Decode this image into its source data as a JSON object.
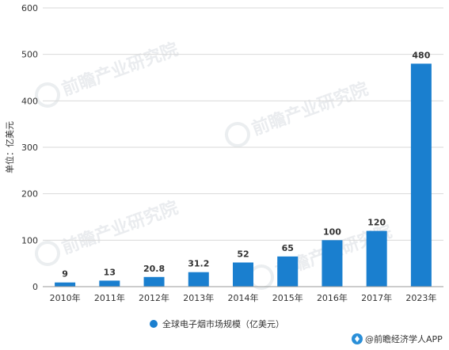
{
  "chart_data": {
    "type": "bar",
    "categories": [
      "2010年",
      "2011年",
      "2012年",
      "2013年",
      "2014年",
      "2015年",
      "2016年",
      "2017年",
      "2023年"
    ],
    "series": [
      {
        "name": "全球电子烟市场规模（亿美元）",
        "values": [
          9,
          13,
          20.8,
          31.2,
          52,
          65,
          100,
          120,
          480
        ]
      }
    ],
    "data_labels": [
      "9",
      "13",
      "20.8",
      "31.2",
      "52",
      "65",
      "100",
      "120",
      "480"
    ],
    "ylabel": "单位：亿美元",
    "xlabel": "",
    "ylim": [
      0,
      600
    ],
    "yticks": [
      0,
      100,
      200,
      300,
      400,
      500,
      600
    ],
    "grid": true,
    "legend_position": "bottom",
    "bar_color": "#1a7fcf"
  },
  "source": {
    "label": "@前瞻经济学人APP",
    "icon": "brand-logo-icon"
  },
  "watermark": {
    "text": "前瞻产业研究院"
  }
}
